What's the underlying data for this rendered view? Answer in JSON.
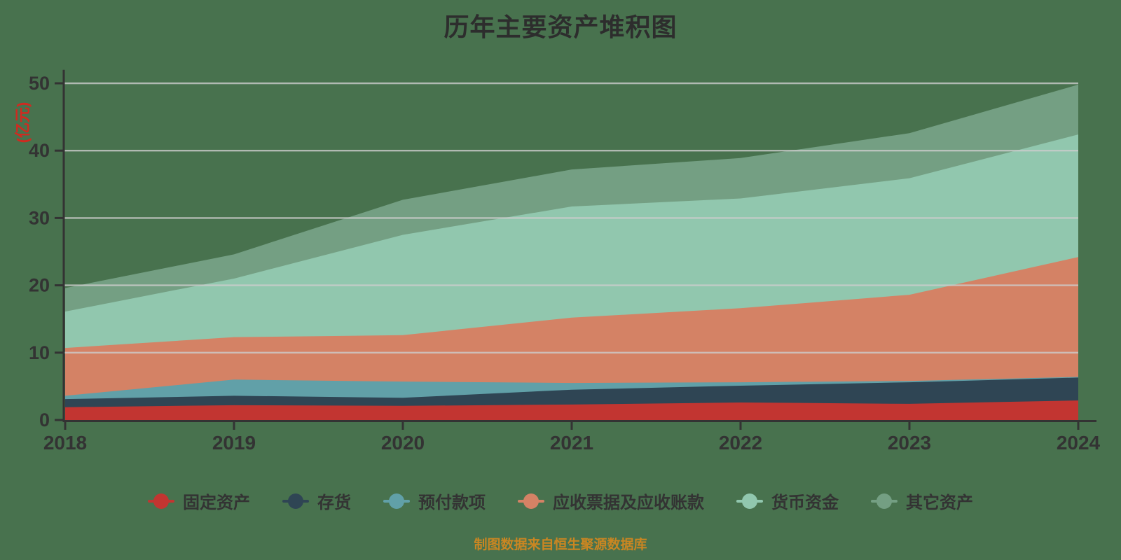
{
  "title": "历年主要资产堆积图",
  "footer": "制图数据来自恒生聚源数据库",
  "colors": {
    "background": "#48724E",
    "axis": "#333333",
    "grid": "#cccccc",
    "tick_label": "#333333",
    "title_text": "#2d2d2d",
    "y_axis_name_text": "#d02a20",
    "footer_text": "#ca8622"
  },
  "chart_data": {
    "type": "area",
    "stacked": true,
    "title": "历年主要资产堆积图",
    "ylabel": "(亿元)",
    "xlabel": "",
    "x": [
      2018,
      2019,
      2020,
      2021,
      2022,
      2023,
      2024
    ],
    "ylim": [
      0,
      50
    ],
    "y_ticks": [
      0,
      10,
      20,
      30,
      40,
      50
    ],
    "grid": true,
    "legend_position": "bottom",
    "unit": "亿元",
    "series": [
      {
        "name": "固定资产",
        "color": "#c23531",
        "values": [
          1.9,
          2.2,
          2.1,
          2.3,
          2.6,
          2.4,
          2.9
        ]
      },
      {
        "name": "存货",
        "color": "#2f4554",
        "values": [
          1.2,
          1.4,
          1.2,
          2.2,
          2.5,
          3.2,
          3.4
        ]
      },
      {
        "name": "预付款项",
        "color": "#61a0a8",
        "values": [
          0.5,
          2.4,
          2.4,
          1.0,
          0.5,
          0.2,
          0.1
        ]
      },
      {
        "name": "应收票据及应收账款",
        "color": "#d48265",
        "values": [
          7.1,
          6.3,
          6.9,
          9.7,
          11.0,
          12.8,
          17.8
        ]
      },
      {
        "name": "货币资金",
        "color": "#91c7ae",
        "values": [
          5.4,
          8.7,
          14.9,
          16.5,
          16.3,
          17.3,
          18.2
        ]
      },
      {
        "name": "其它资产",
        "color": "#749f83",
        "values": [
          3.5,
          3.6,
          5.2,
          5.5,
          6.0,
          6.7,
          7.4
        ]
      }
    ]
  }
}
